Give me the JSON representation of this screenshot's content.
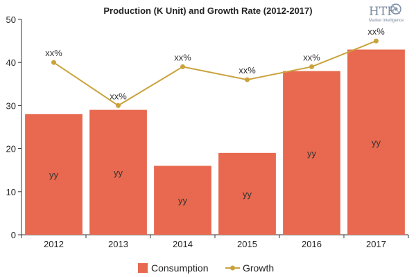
{
  "chart_data": {
    "type": "bar",
    "title": "Production (K Unit) and Growth Rate (2012-2017)",
    "categories": [
      "2012",
      "2013",
      "2014",
      "2015",
      "2016",
      "2017"
    ],
    "series": [
      {
        "name": "Consumption",
        "kind": "bar",
        "color": "#e8694f",
        "values": [
          28,
          29,
          16,
          19,
          38,
          43
        ],
        "data_labels": [
          "yy",
          "yy",
          "yy",
          "yy",
          "yy",
          "yy"
        ]
      },
      {
        "name": "Growth",
        "kind": "line",
        "color": "#c9a23c",
        "values": [
          40,
          30,
          39,
          36,
          39,
          45
        ],
        "data_labels": [
          "xx%",
          "xx%",
          "xx%",
          "xx%",
          "xx%",
          "xx%"
        ]
      }
    ],
    "ylim": [
      0,
      50
    ],
    "yticks": [
      0,
      10,
      20,
      30,
      40,
      50
    ],
    "xlabel": "",
    "ylabel": "",
    "grid": false,
    "legend_position": "bottom"
  },
  "logo": {
    "mark": "HTF",
    "subtitle": "Market Intelligence"
  }
}
